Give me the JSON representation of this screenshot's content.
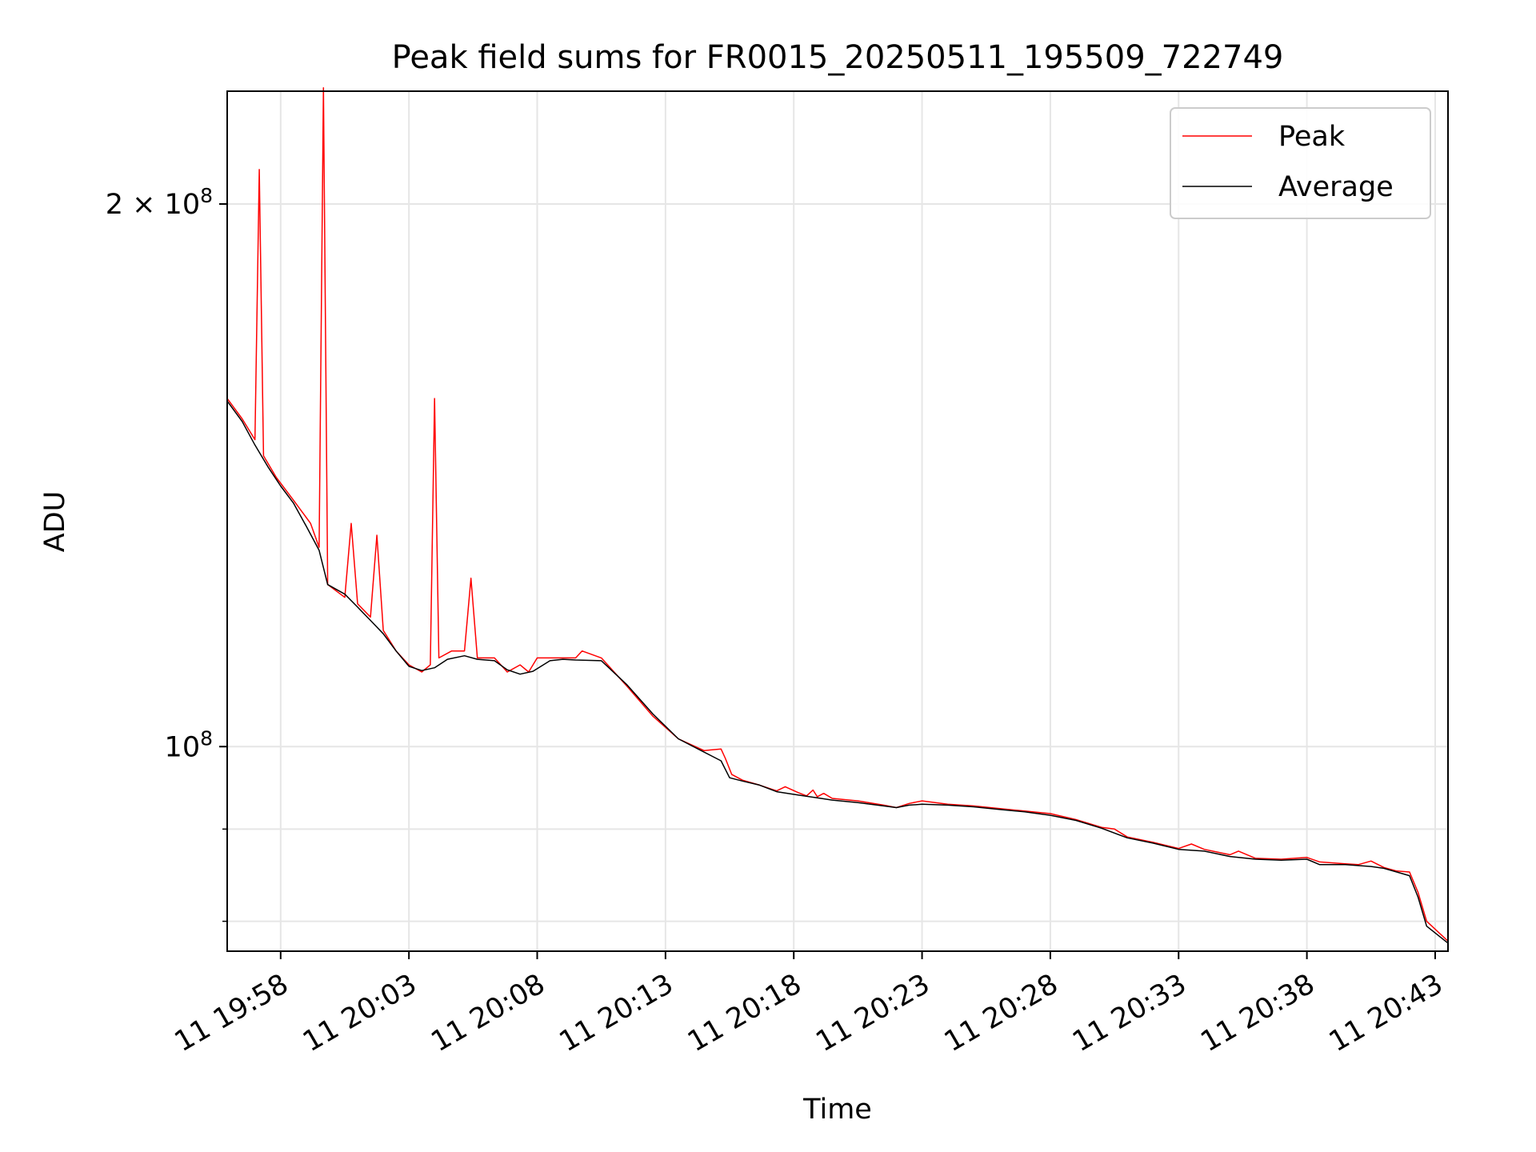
{
  "chart_data": {
    "type": "line",
    "title": "Peak field sums for FR0015_20250511_195509_722749",
    "xlabel": "Time",
    "ylabel": "ADU",
    "y_scale": "log",
    "grid": true,
    "legend_position": "top-right",
    "x_unit": "datetime (day 11, HH:MM)",
    "xlim": [
      "11 19:55:55",
      "11 20:43:30"
    ],
    "ylim": [
      77000000,
      231000000
    ],
    "x_ticks": [
      {
        "label": "11 19:58",
        "value": "19:58"
      },
      {
        "label": "11 20:03",
        "value": "20:03"
      },
      {
        "label": "11 20:08",
        "value": "20:08"
      },
      {
        "label": "11 20:13",
        "value": "20:13"
      },
      {
        "label": "11 20:18",
        "value": "20:18"
      },
      {
        "label": "11 20:23",
        "value": "20:23"
      },
      {
        "label": "11 20:28",
        "value": "20:28"
      },
      {
        "label": "11 20:33",
        "value": "20:33"
      },
      {
        "label": "11 20:38",
        "value": "20:38"
      },
      {
        "label": "11 20:43",
        "value": "20:43"
      }
    ],
    "y_major_ticks": [
      {
        "value": 200000000,
        "base": "2 × 10",
        "exp": "8"
      },
      {
        "value": 100000000,
        "base": "10",
        "exp": "8"
      }
    ],
    "y_minor_ticks": [
      90000000,
      80000000
    ],
    "series": [
      {
        "name": "Peak",
        "color": "#ff0000",
        "points": [
          [
            "19:55:55",
            156000000
          ],
          [
            "19:56:30",
            152000000
          ],
          [
            "19:57:00",
            148000000
          ],
          [
            "19:57:10",
            209000000
          ],
          [
            "19:57:20",
            145000000
          ],
          [
            "19:57:50",
            141000000
          ],
          [
            "19:58:30",
            137000000
          ],
          [
            "19:59:10",
            133000000
          ],
          [
            "19:59:30",
            129000000
          ],
          [
            "19:59:40",
            232000000
          ],
          [
            "19:59:50",
            123000000
          ],
          [
            "20:00:30",
            121000000
          ],
          [
            "20:00:45",
            133000000
          ],
          [
            "20:01:00",
            120000000
          ],
          [
            "20:01:30",
            118000000
          ],
          [
            "20:01:45",
            131000000
          ],
          [
            "20:02:00",
            116000000
          ],
          [
            "20:02:30",
            113000000
          ],
          [
            "20:03:00",
            111000000
          ],
          [
            "20:03:30",
            110000000
          ],
          [
            "20:03:50",
            111000000
          ],
          [
            "20:04:00",
            156000000
          ],
          [
            "20:04:10",
            112000000
          ],
          [
            "20:04:40",
            113000000
          ],
          [
            "20:05:10",
            113000000
          ],
          [
            "20:05:25",
            124000000
          ],
          [
            "20:05:40",
            112000000
          ],
          [
            "20:06:20",
            112000000
          ],
          [
            "20:06:50",
            110000000
          ],
          [
            "20:07:20",
            111000000
          ],
          [
            "20:07:40",
            110000000
          ],
          [
            "20:08:00",
            112000000
          ],
          [
            "20:08:30",
            112000000
          ],
          [
            "20:09:00",
            112000000
          ],
          [
            "20:09:30",
            112000000
          ],
          [
            "20:09:45",
            113000000
          ],
          [
            "20:10:30",
            112000000
          ],
          [
            "20:11:30",
            108000000
          ],
          [
            "20:12:30",
            104000000
          ],
          [
            "20:13:30",
            101000000
          ],
          [
            "20:14:30",
            99500000
          ],
          [
            "20:15:10",
            99700000
          ],
          [
            "20:15:20",
            98500000
          ],
          [
            "20:15:35",
            96500000
          ],
          [
            "20:16:00",
            95800000
          ],
          [
            "20:16:40",
            95200000
          ],
          [
            "20:17:20",
            94500000
          ],
          [
            "20:17:40",
            95000000
          ],
          [
            "20:18:10",
            94300000
          ],
          [
            "20:18:30",
            93900000
          ],
          [
            "20:18:45",
            94600000
          ],
          [
            "20:18:55",
            93800000
          ],
          [
            "20:19:10",
            94200000
          ],
          [
            "20:19:30",
            93600000
          ],
          [
            "20:20:30",
            93300000
          ],
          [
            "20:21:30",
            92800000
          ],
          [
            "20:22:00",
            92500000
          ],
          [
            "20:22:30",
            93000000
          ],
          [
            "20:23:00",
            93300000
          ],
          [
            "20:24:00",
            92900000
          ],
          [
            "20:25:00",
            92700000
          ],
          [
            "20:26:00",
            92400000
          ],
          [
            "20:27:00",
            92100000
          ],
          [
            "20:28:00",
            91800000
          ],
          [
            "20:29:00",
            91100000
          ],
          [
            "20:30:00",
            90200000
          ],
          [
            "20:30:30",
            90000000
          ],
          [
            "20:31:00",
            89100000
          ],
          [
            "20:32:00",
            88500000
          ],
          [
            "20:33:00",
            87800000
          ],
          [
            "20:33:30",
            88300000
          ],
          [
            "20:34:00",
            87700000
          ],
          [
            "20:35:00",
            87100000
          ],
          [
            "20:35:20",
            87500000
          ],
          [
            "20:36:00",
            86700000
          ],
          [
            "20:37:00",
            86600000
          ],
          [
            "20:38:00",
            86800000
          ],
          [
            "20:38:30",
            86300000
          ],
          [
            "20:39:30",
            86100000
          ],
          [
            "20:40:00",
            86000000
          ],
          [
            "20:40:30",
            86400000
          ],
          [
            "20:41:00",
            85700000
          ],
          [
            "20:41:30",
            85300000
          ],
          [
            "20:42:00",
            85200000
          ],
          [
            "20:42:20",
            83000000
          ],
          [
            "20:42:40",
            80000000
          ],
          [
            "20:43:30",
            78000000
          ]
        ]
      },
      {
        "name": "Average",
        "color": "#000000",
        "points": [
          [
            "19:55:55",
            155500000
          ],
          [
            "19:56:30",
            151500000
          ],
          [
            "19:57:00",
            147000000
          ],
          [
            "19:57:30",
            143000000
          ],
          [
            "19:58:00",
            139500000
          ],
          [
            "19:58:30",
            136500000
          ],
          [
            "19:59:00",
            132500000
          ],
          [
            "19:59:30",
            128500000
          ],
          [
            "19:59:50",
            123000000
          ],
          [
            "20:00:30",
            121500000
          ],
          [
            "20:01:00",
            119500000
          ],
          [
            "20:01:30",
            117500000
          ],
          [
            "20:02:00",
            115500000
          ],
          [
            "20:02:30",
            113000000
          ],
          [
            "20:03:00",
            110800000
          ],
          [
            "20:03:30",
            110200000
          ],
          [
            "20:04:00",
            110600000
          ],
          [
            "20:04:30",
            111800000
          ],
          [
            "20:05:10",
            112300000
          ],
          [
            "20:05:40",
            111800000
          ],
          [
            "20:06:20",
            111600000
          ],
          [
            "20:06:50",
            110300000
          ],
          [
            "20:07:20",
            109700000
          ],
          [
            "20:07:50",
            110100000
          ],
          [
            "20:08:30",
            111600000
          ],
          [
            "20:09:00",
            111800000
          ],
          [
            "20:09:30",
            111700000
          ],
          [
            "20:10:30",
            111600000
          ],
          [
            "20:11:30",
            108200000
          ],
          [
            "20:12:30",
            104300000
          ],
          [
            "20:13:30",
            101000000
          ],
          [
            "20:14:30",
            99300000
          ],
          [
            "20:15:10",
            98200000
          ],
          [
            "20:15:30",
            96100000
          ],
          [
            "20:16:00",
            95700000
          ],
          [
            "20:16:40",
            95200000
          ],
          [
            "20:17:20",
            94400000
          ],
          [
            "20:18:10",
            94000000
          ],
          [
            "20:18:50",
            93700000
          ],
          [
            "20:19:30",
            93400000
          ],
          [
            "20:20:30",
            93100000
          ],
          [
            "20:21:30",
            92700000
          ],
          [
            "20:22:00",
            92500000
          ],
          [
            "20:22:30",
            92800000
          ],
          [
            "20:23:00",
            92900000
          ],
          [
            "20:24:00",
            92800000
          ],
          [
            "20:25:00",
            92600000
          ],
          [
            "20:26:00",
            92300000
          ],
          [
            "20:27:00",
            92000000
          ],
          [
            "20:28:00",
            91600000
          ],
          [
            "20:29:00",
            91000000
          ],
          [
            "20:30:00",
            90100000
          ],
          [
            "20:31:00",
            89000000
          ],
          [
            "20:32:00",
            88400000
          ],
          [
            "20:33:00",
            87700000
          ],
          [
            "20:34:00",
            87500000
          ],
          [
            "20:35:00",
            86900000
          ],
          [
            "20:36:00",
            86600000
          ],
          [
            "20:37:00",
            86500000
          ],
          [
            "20:38:00",
            86600000
          ],
          [
            "20:38:30",
            86000000
          ],
          [
            "20:39:30",
            86000000
          ],
          [
            "20:40:30",
            85800000
          ],
          [
            "20:41:00",
            85600000
          ],
          [
            "20:41:30",
            85200000
          ],
          [
            "20:42:00",
            84800000
          ],
          [
            "20:42:20",
            82500000
          ],
          [
            "20:42:40",
            79500000
          ],
          [
            "20:43:30",
            77800000
          ]
        ]
      }
    ]
  }
}
